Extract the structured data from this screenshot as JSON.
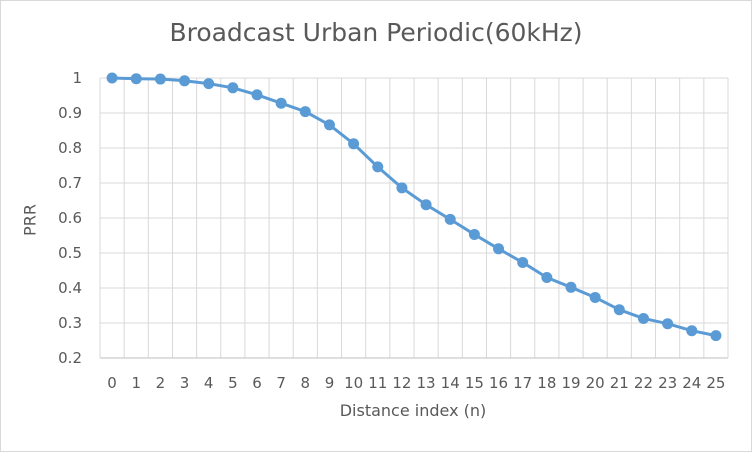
{
  "chart_data": {
    "type": "line",
    "title": "Broadcast Urban Periodic(60kHz)",
    "xlabel": "Distance index (n)",
    "ylabel": "PRR",
    "x": [
      0,
      1,
      2,
      3,
      4,
      5,
      6,
      7,
      8,
      9,
      10,
      11,
      12,
      13,
      14,
      15,
      16,
      17,
      18,
      19,
      20,
      21,
      22,
      23,
      24,
      25
    ],
    "x_tick_labels": [
      "0",
      "1",
      "2",
      "3",
      "4",
      "5",
      "6",
      "7",
      "8",
      "9",
      "10",
      "11",
      "12",
      "13",
      "14",
      "15",
      "16",
      "17",
      "18",
      "19",
      "20",
      "21",
      "22",
      "23",
      "24",
      "25"
    ],
    "y_tick_labels": [
      "0.2",
      "0.3",
      "0.4",
      "0.5",
      "0.6",
      "0.7",
      "0.8",
      "0.9",
      "1"
    ],
    "series": [
      {
        "values": [
          1.0,
          0.998,
          0.997,
          0.992,
          0.984,
          0.972,
          0.952,
          0.928,
          0.904,
          0.866,
          0.812,
          0.746,
          0.686,
          0.638,
          0.596,
          0.553,
          0.512,
          0.473,
          0.43,
          0.402,
          0.373,
          0.338,
          0.313,
          0.298,
          0.278,
          0.264
        ],
        "color": "#5b9bd5"
      }
    ],
    "ylim": [
      0.2,
      1.0
    ],
    "grid": true,
    "grid_color": "#d9d9d9",
    "legend": "none"
  }
}
